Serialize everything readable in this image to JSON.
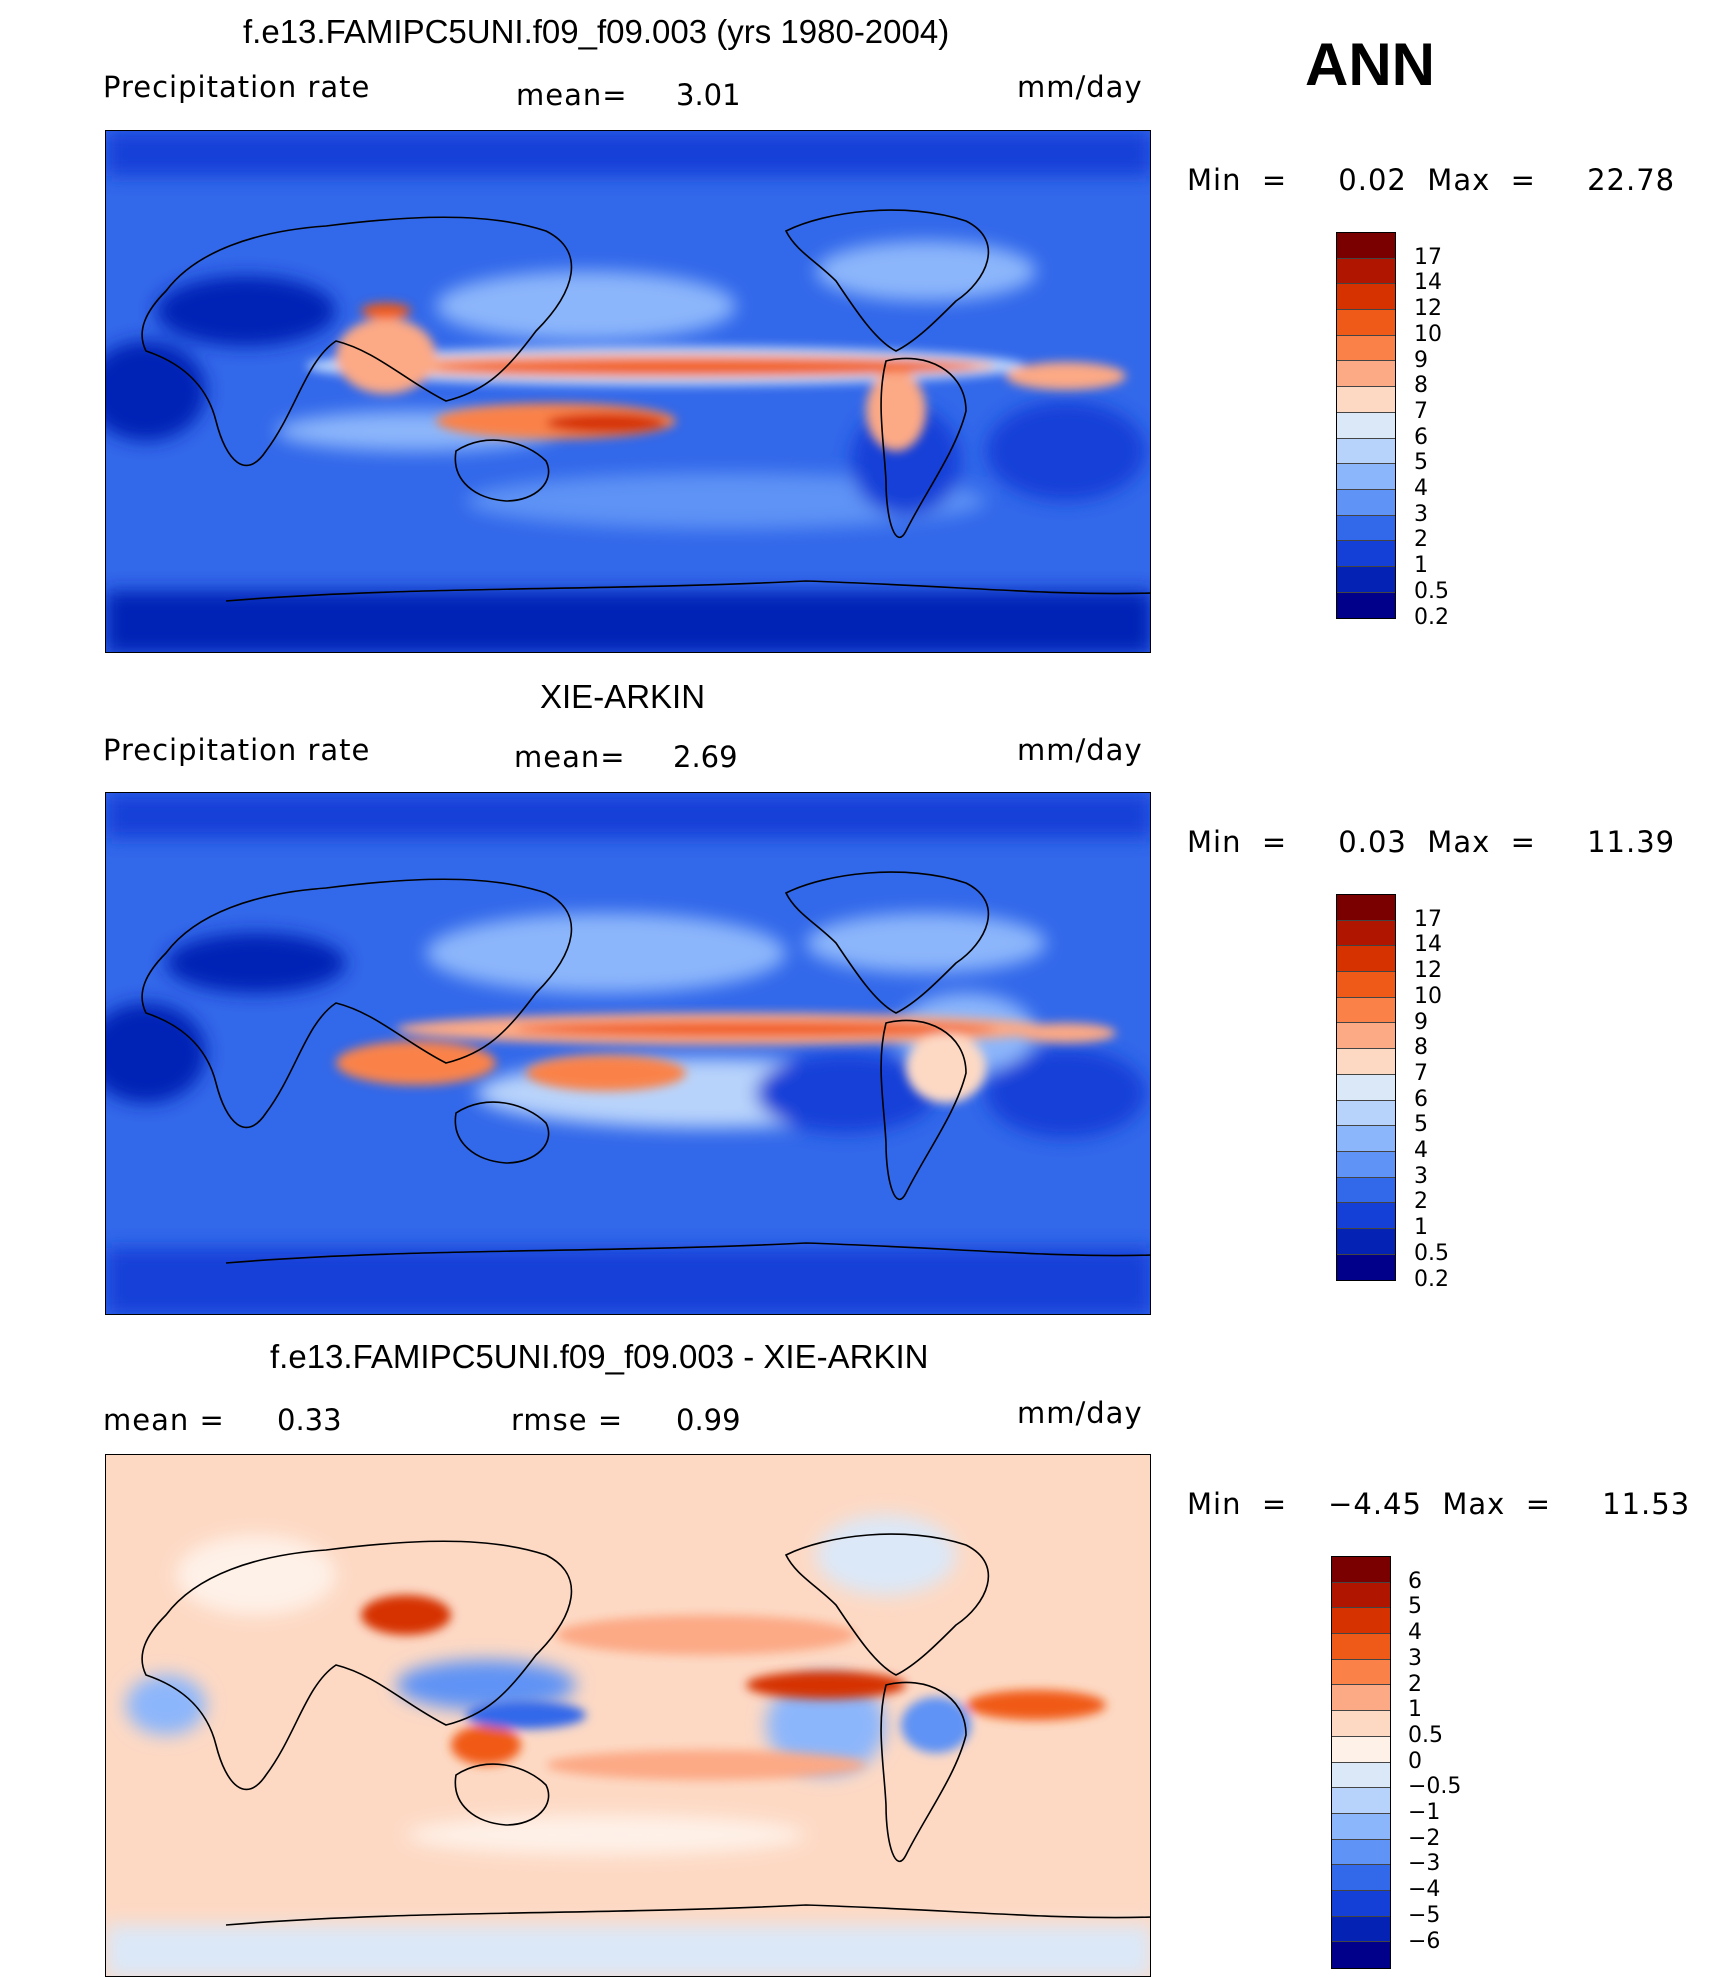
{
  "season": "ANN",
  "panels": [
    {
      "title": "f.e13.FAMIPC5UNI.f09_f09.003 (yrs 1980-2004)",
      "left_label": "Precipitation  rate",
      "mid_label": "mean=",
      "mid_value": "3.01",
      "units": "mm/day",
      "minmax": "Min  =     0.02  Max  =     22.78",
      "kind": "abs"
    },
    {
      "title": "XIE-ARKIN",
      "left_label": "Precipitation  rate",
      "mid_label": "mean=",
      "mid_value": "2.69",
      "units": "mm/day",
      "minmax": "Min  =     0.03  Max  =     11.39",
      "kind": "abs"
    },
    {
      "title": "f.e13.FAMIPC5UNI.f09_f09.003 - XIE-ARKIN",
      "left_label": "mean  =",
      "left_value": "0.33",
      "mid_label": "rmse  =",
      "mid_value": "0.99",
      "units": "mm/day",
      "minmax": "Min  =    −4.45  Max  =     11.53",
      "kind": "diff"
    }
  ],
  "colorbars": {
    "abs": {
      "labels": [
        "17",
        "14",
        "12",
        "10",
        "9",
        "8",
        "7",
        "6",
        "5",
        "4",
        "3",
        "2",
        "1",
        "0.5",
        "0.2"
      ],
      "colors": [
        "#7a0000",
        "#b01500",
        "#d63200",
        "#f05a18",
        "#fa8248",
        "#fca985",
        "#fdd9c4",
        "#dbe8f8",
        "#b8d3fb",
        "#8cb6fb",
        "#5f93f5",
        "#3268ea",
        "#1440d8",
        "#0423b5",
        "#00008a"
      ]
    },
    "diff": {
      "labels": [
        "6",
        "5",
        "4",
        "3",
        "2",
        "1",
        "0.5",
        "0",
        "−0.5",
        "−1",
        "−2",
        "−3",
        "−4",
        "−5",
        "−6"
      ],
      "colors": [
        "#7a0000",
        "#b01500",
        "#d63200",
        "#f05a18",
        "#fa8248",
        "#fca985",
        "#fdd9c4",
        "#fef1e8",
        "#dbe8f8",
        "#b8d3fb",
        "#8cb6fb",
        "#5f93f5",
        "#3268ea",
        "#1440d8",
        "#0423b5",
        "#00008a"
      ]
    }
  }
}
